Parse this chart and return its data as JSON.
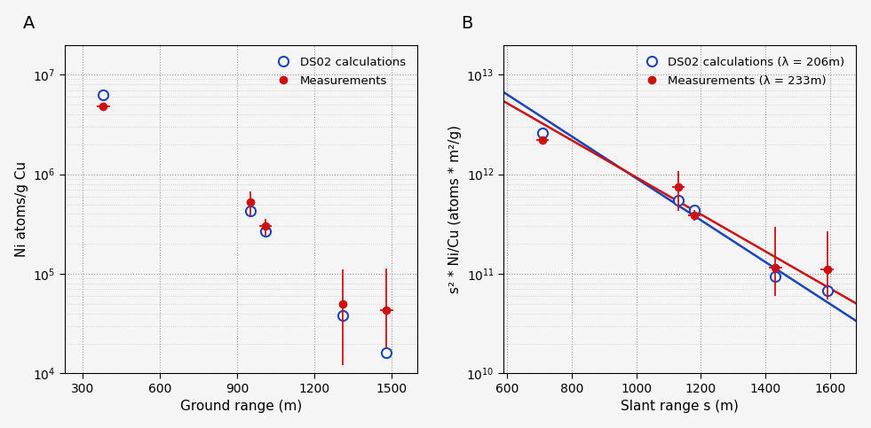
{
  "panel_A": {
    "title": "A",
    "xlabel": "Ground range (m)",
    "ylabel": "Ni atoms/g Cu",
    "xlim": [
      230,
      1600
    ],
    "ylim": [
      10000.0,
      20000000.0
    ],
    "xticks": [
      300,
      600,
      900,
      1200,
      1500
    ],
    "calc_x": [
      380,
      950,
      1010,
      1310,
      1480
    ],
    "calc_y": [
      6300000,
      430000,
      270000,
      38000,
      16000
    ],
    "meas_x": [
      380,
      950,
      1010,
      1310,
      1480
    ],
    "meas_y": [
      4800000,
      530000,
      300000,
      50000,
      43000
    ],
    "meas_xerr": [
      25,
      0,
      25,
      0,
      25
    ],
    "meas_yerr_lo": [
      0,
      140000,
      60000,
      38000,
      25000
    ],
    "meas_yerr_hi": [
      0,
      140000,
      60000,
      60000,
      70000
    ],
    "legend_labels": [
      "DS02 calculations",
      "Measurements"
    ]
  },
  "panel_B": {
    "title": "B",
    "xlabel": "Slant range s (m)",
    "ylabel": "s² * Ni/Cu (atoms * m²/g)",
    "xlim": [
      590,
      1680
    ],
    "ylim": [
      10000000000.0,
      20000000000000.0
    ],
    "xticks": [
      600,
      800,
      1000,
      1200,
      1400,
      1600
    ],
    "calc_x": [
      710,
      1130,
      1180,
      1430,
      1590
    ],
    "calc_y": [
      2600000000000.0,
      550000000000.0,
      440000000000.0,
      95000000000.0,
      68000000000.0
    ],
    "meas_x": [
      710,
      1130,
      1180,
      1430,
      1590
    ],
    "meas_y": [
      2200000000000.0,
      750000000000.0,
      390000000000.0,
      115000000000.0,
      110000000000.0
    ],
    "meas_xerr": [
      20,
      20,
      20,
      20,
      20
    ],
    "meas_yerr_lo": [
      0,
      320000000000.0,
      50000000000.0,
      55000000000.0,
      55000000000.0
    ],
    "meas_yerr_hi": [
      0,
      320000000000.0,
      50000000000.0,
      180000000000.0,
      160000000000.0
    ],
    "lambda_calc": 206,
    "lambda_meas": 233,
    "legend_labels": [
      "DS02 calculations (λ = 206m)",
      "Measurements (λ = 233m)"
    ]
  },
  "calc_color": "#1a44bb",
  "meas_color": "#cc1111",
  "bg_color": "#f5f5f5",
  "marker_size": 6,
  "linewidth": 1.8
}
